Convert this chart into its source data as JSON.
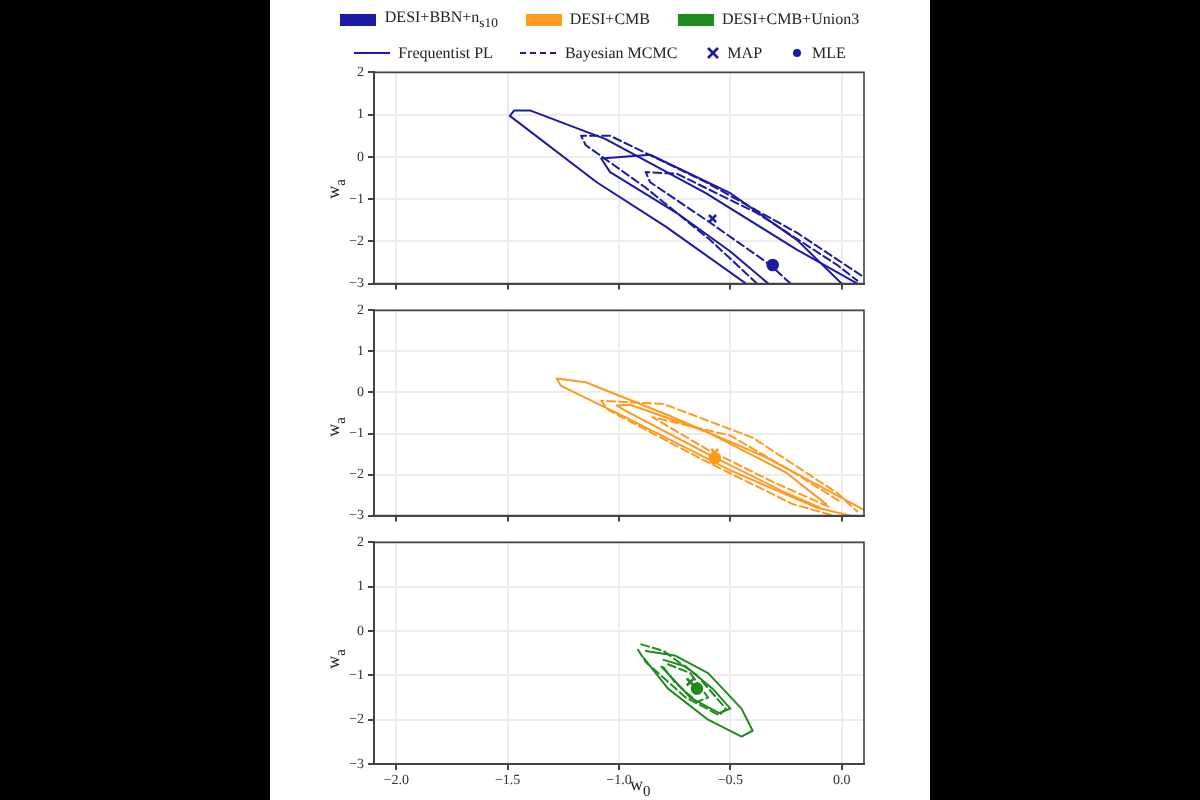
{
  "chart_data": [
    {
      "type": "line",
      "ylabel": "w$_{a}$",
      "xlim": [
        -2.1,
        0.1
      ],
      "ylim": [
        -3,
        2
      ],
      "xticks": [
        {
          "value": -2,
          "label": null
        },
        {
          "value": -1.5,
          "label": null
        },
        {
          "value": -1,
          "label": null
        },
        {
          "value": -0.5,
          "label": null
        },
        {
          "value": 0,
          "label": null
        }
      ],
      "yticks": [
        {
          "value": -3,
          "label": "−3"
        },
        {
          "value": -2,
          "label": "−2"
        },
        {
          "value": -1,
          "label": "−1"
        },
        0,
        1,
        2
      ],
      "tick_labels": "y",
      "grid": true,
      "legend": "top",
      "series": [
        {
          "name": "DESI+BBN+n$_{s10}$",
          "color": "#1a1aa6",
          "line_style": "solid",
          "marker": "none",
          "x": [
            -0.43,
            -0.79,
            -1.1,
            -1.49,
            -1.47,
            -1.4,
            -1.06,
            -0.61,
            -0.2,
            0.07
          ],
          "values": [
            -3,
            -1.65,
            -0.6,
            0.97,
            1.1,
            1.1,
            0.42,
            -0.86,
            -2.2,
            -3
          ]
        },
        {
          "name": "Frequentist PL",
          "color": "#1a1aa6",
          "line_style": "solid",
          "marker": "none",
          "x": [
            -0.33,
            -0.5,
            -0.74,
            -1.04,
            -1.08,
            -0.86,
            -0.5,
            -0.2,
            0
          ],
          "values": [
            -3,
            -2.24,
            -1.33,
            -0.36,
            -0.04,
            0.05,
            -0.86,
            -1.97,
            -3
          ]
        },
        {
          "name": "Bayesian MCMC",
          "color": "#1a1aa6",
          "line_style": "dashed",
          "marker": "none",
          "x": [
            -0.38,
            -0.59,
            -0.88,
            -1.15,
            -1.17,
            -1.04,
            -0.61,
            -0.2,
            0.1
          ],
          "values": [
            -3,
            -1.97,
            -0.73,
            0.28,
            0.5,
            0.5,
            -0.6,
            -1.8,
            -2.85
          ]
        },
        {
          "color": "#1a1aa6",
          "line_style": "dashed",
          "marker": "none",
          "x": [
            -0.23,
            -0.32,
            -0.59,
            -0.86,
            -0.88,
            -0.74,
            -0.38,
            -0.02,
            0.07
          ],
          "values": [
            -3,
            -2.56,
            -1.56,
            -0.6,
            -0.36,
            -0.4,
            -1.33,
            -2.56,
            -2.93
          ]
        },
        {
          "name": "MAP",
          "type": "scatter",
          "color": "#1a1aa6",
          "marker": "cross",
          "x": [
            -0.58
          ],
          "values": [
            -1.46
          ]
        },
        {
          "name": "MLE",
          "type": "scatter",
          "color": "#1a1aa6",
          "marker": "circle",
          "x": [
            -0.31
          ],
          "values": [
            -2.56
          ]
        }
      ]
    },
    {
      "type": "line",
      "ylabel": "w$_{a}$",
      "xlim": [
        -2.1,
        0.1
      ],
      "ylim": [
        -3,
        2
      ],
      "xticks": [
        {
          "value": -2,
          "label": null
        },
        {
          "value": -1.5,
          "label": null
        },
        {
          "value": -1,
          "label": null
        },
        {
          "value": -0.5,
          "label": null
        },
        {
          "value": 0,
          "label": null
        }
      ],
      "yticks": [
        {
          "value": -3,
          "label": "−3"
        },
        {
          "value": -2,
          "label": "−2"
        },
        {
          "value": -1,
          "label": "−1"
        },
        0,
        1,
        2
      ],
      "tick_labels": "y",
      "grid": true,
      "legend": "top",
      "series": [
        {
          "name": "DESI+CMB",
          "color": "#ff9a1f",
          "line_style": "solid",
          "marker": "none",
          "x": [
            0.04,
            -0.11,
            -0.5,
            -0.95,
            -1.26,
            -1.28,
            -1.15,
            -0.79,
            -0.34,
            0.1
          ],
          "values": [
            -3,
            -2.81,
            -1.9,
            -0.66,
            0.16,
            0.34,
            0.25,
            -0.53,
            -1.58,
            -2.86
          ]
        },
        {
          "color": "#ff9a1f",
          "line_style": "solid",
          "marker": "none",
          "x": [
            -0.1,
            -0.25,
            -0.6,
            -0.97,
            -1.01,
            -0.95,
            -0.61,
            -0.25,
            -0.07
          ],
          "values": [
            -2.8,
            -2.45,
            -1.5,
            -0.45,
            -0.32,
            -0.3,
            -0.95,
            -1.95,
            -2.72
          ]
        },
        {
          "color": "#ff9a1f",
          "line_style": "dashed",
          "marker": "none",
          "x": [
            -0.05,
            -0.22,
            -0.62,
            -1.05,
            -1.08,
            -0.8,
            -0.4,
            -0.02,
            0.07
          ],
          "values": [
            -2.98,
            -2.72,
            -1.65,
            -0.42,
            -0.2,
            -0.28,
            -1.1,
            -2.45,
            -2.9
          ]
        },
        {
          "color": "#ff9a1f",
          "line_style": "dashed",
          "marker": "none",
          "x": [
            -0.06,
            -0.3,
            -0.6,
            -0.85,
            -0.5,
            -0.2,
            0
          ],
          "values": [
            -2.78,
            -2.2,
            -1.4,
            -0.6,
            -1.05,
            -2,
            -2.68
          ]
        },
        {
          "type": "scatter",
          "color": "#ff9a1f",
          "marker": "cross",
          "x": [
            -0.57
          ],
          "values": [
            -1.46
          ]
        },
        {
          "type": "scatter",
          "color": "#ff9a1f",
          "marker": "circle",
          "x": [
            -0.57
          ],
          "values": [
            -1.6
          ]
        }
      ]
    },
    {
      "type": "line",
      "xlabel": "w$_{0}$",
      "ylabel": "w$_{a}$",
      "xlim": [
        -2.1,
        0.1
      ],
      "ylim": [
        -3,
        2
      ],
      "xticks": [
        {
          "value": -2,
          "label": "−2.0"
        },
        {
          "value": -1.5,
          "label": "−1.5"
        },
        {
          "value": -1,
          "label": "−1.0"
        },
        {
          "value": -0.5,
          "label": "−0.5"
        },
        {
          "value": 0,
          "label": "0.0"
        }
      ],
      "yticks": [
        {
          "value": -3,
          "label": "−3"
        },
        {
          "value": -2,
          "label": "−2"
        },
        {
          "value": -1,
          "label": "−1"
        },
        0,
        1,
        2
      ],
      "grid": true,
      "legend": "top",
      "series": [
        {
          "name": "DESI+CMB+Union3",
          "color": "#1e8c1e",
          "line_style": "solid",
          "marker": "none",
          "x": [
            -0.88,
            -0.75,
            -0.6,
            -0.45,
            -0.4,
            -0.45,
            -0.6,
            -0.78,
            -0.89
          ],
          "values": [
            -0.45,
            -0.55,
            -0.95,
            -1.75,
            -2.25,
            -2.38,
            -2,
            -1.3,
            -0.6
          ]
        },
        {
          "color": "#1e8c1e",
          "line_style": "solid",
          "marker": "none",
          "x": [
            -0.8,
            -0.7,
            -0.58,
            -0.5,
            -0.55,
            -0.68,
            -0.81
          ],
          "values": [
            -0.65,
            -0.8,
            -1.3,
            -1.75,
            -1.85,
            -1.5,
            -0.8
          ]
        },
        {
          "color": "#1e8c1e",
          "line_style": "dashed",
          "marker": "none",
          "x": [
            -0.9,
            -0.8,
            -0.65,
            -0.52,
            -0.55,
            -0.7,
            -0.88,
            -0.92
          ],
          "values": [
            -0.3,
            -0.45,
            -1,
            -1.75,
            -1.9,
            -1.5,
            -0.7,
            -0.38
          ]
        },
        {
          "color": "#1e8c1e",
          "line_style": "dashed",
          "marker": "none",
          "x": [
            -0.78,
            -0.68,
            -0.6,
            -0.65,
            -0.75,
            -0.8
          ],
          "values": [
            -0.75,
            -0.95,
            -1.5,
            -1.6,
            -1.15,
            -0.82
          ]
        },
        {
          "type": "scatter",
          "color": "#1e8c1e",
          "marker": "cross",
          "x": [
            -0.68
          ],
          "values": [
            -1.15
          ]
        },
        {
          "type": "scatter",
          "color": "#1e8c1e",
          "marker": "circle",
          "x": [
            -0.65
          ],
          "values": [
            -1.3
          ]
        }
      ]
    }
  ]
}
